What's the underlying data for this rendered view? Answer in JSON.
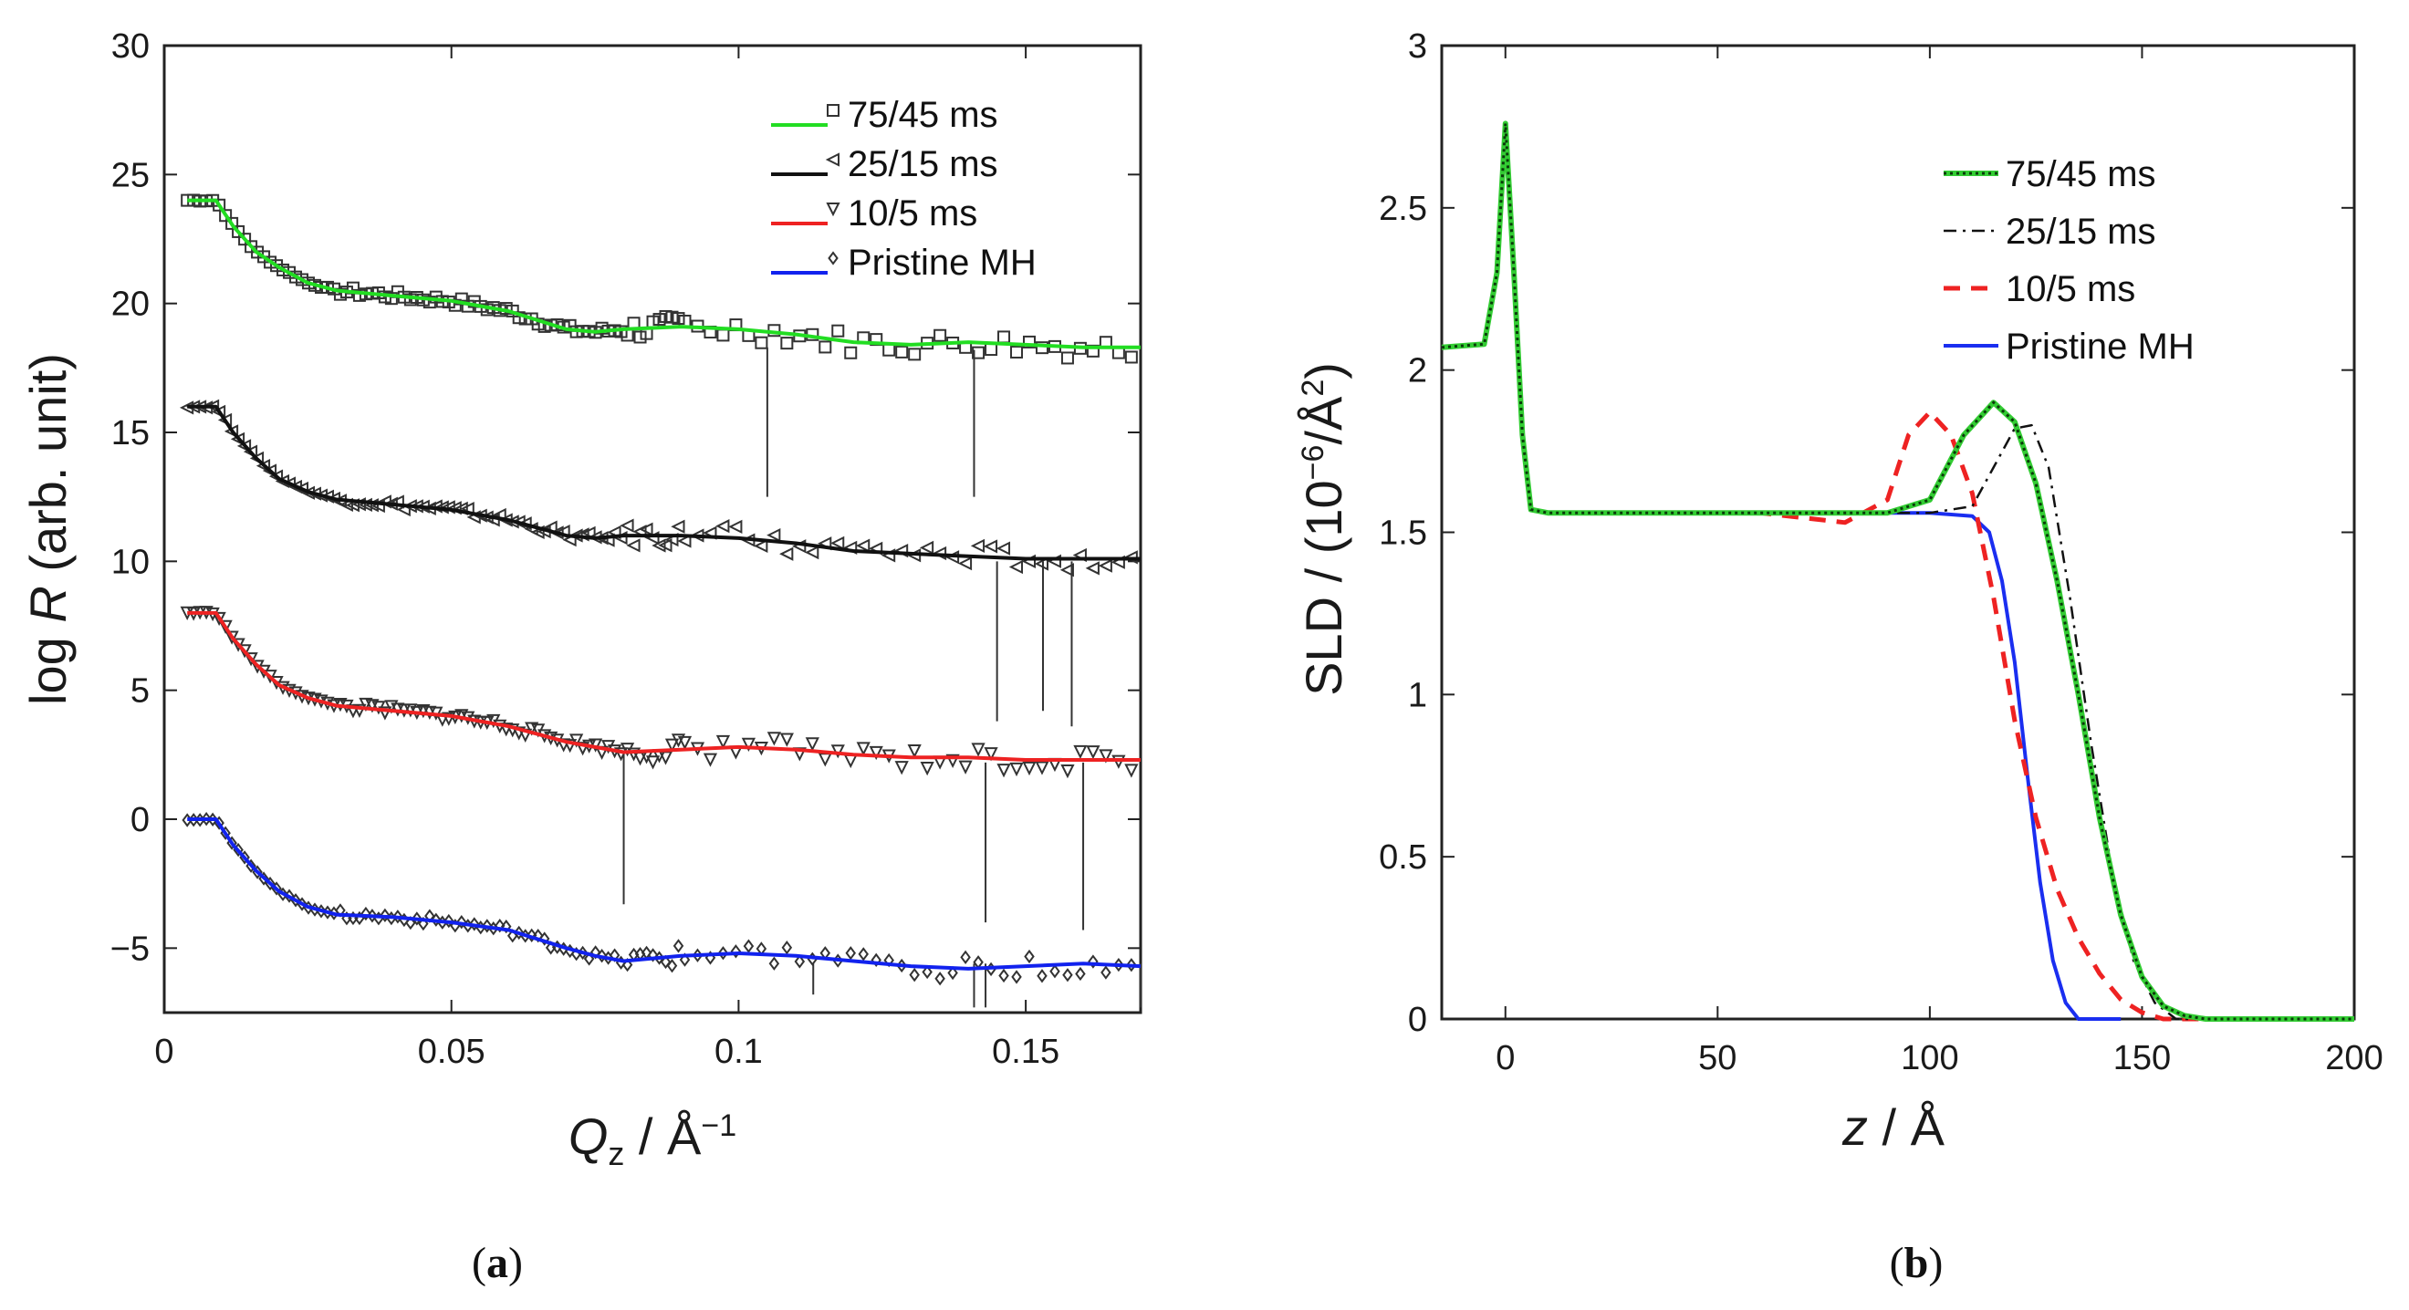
{
  "chart_data": [
    {
      "id": "a",
      "type": "scatter",
      "caption_open": "(",
      "caption_letter": "a",
      "caption_close": ")",
      "xlabel_sym": "Q",
      "xlabel_sub": "z",
      "xlabel_rest": " / Å",
      "xlabel_sup": "−1",
      "ylabel_pre": "log ",
      "ylabel_sym": "R",
      "ylabel_post": " (arb. unit)",
      "xlim": [
        0,
        0.17
      ],
      "ylim": [
        -7.5,
        30
      ],
      "xticks": [
        0,
        0.05,
        0.1,
        0.15
      ],
      "xtick_labels": [
        "0",
        "0.05",
        "0.1",
        "0.15"
      ],
      "yticks": [
        -5,
        0,
        5,
        10,
        15,
        20,
        25,
        30
      ],
      "ytick_labels": [
        "−5",
        "0",
        "5",
        "10",
        "15",
        "20",
        "25",
        "30"
      ],
      "series": [
        {
          "name": "75/45 ms",
          "color": "#22dd22",
          "marker": "square",
          "x": [
            0.004,
            0.009,
            0.012,
            0.016,
            0.02,
            0.025,
            0.03,
            0.04,
            0.05,
            0.06,
            0.07,
            0.075,
            0.08,
            0.09,
            0.1,
            0.11,
            0.12,
            0.13,
            0.14,
            0.15,
            0.16,
            0.17
          ],
          "y": [
            24.0,
            24.0,
            23.0,
            22.0,
            21.4,
            20.8,
            20.5,
            20.3,
            20.1,
            19.7,
            19.0,
            18.9,
            19.0,
            19.1,
            19.0,
            18.8,
            18.5,
            18.4,
            18.5,
            18.4,
            18.3,
            18.3
          ],
          "error_bars": [
            [
              0.105,
              18.3,
              12.5
            ],
            [
              0.141,
              18.2,
              12.5
            ]
          ]
        },
        {
          "name": "25/15 ms",
          "color": "#111111",
          "marker": "triangle-left",
          "x": [
            0.004,
            0.009,
            0.012,
            0.016,
            0.02,
            0.025,
            0.03,
            0.04,
            0.05,
            0.06,
            0.07,
            0.075,
            0.08,
            0.09,
            0.1,
            0.11,
            0.12,
            0.13,
            0.14,
            0.15,
            0.16,
            0.17
          ],
          "y": [
            16.0,
            16.0,
            15.0,
            14.0,
            13.2,
            12.7,
            12.4,
            12.2,
            12.0,
            11.6,
            11.0,
            10.9,
            11.0,
            11.0,
            10.9,
            10.7,
            10.4,
            10.3,
            10.2,
            10.1,
            10.1,
            10.1
          ],
          "error_bars": [
            [
              0.145,
              10.0,
              3.8
            ],
            [
              0.153,
              10.0,
              4.2
            ],
            [
              0.158,
              10.0,
              3.6
            ]
          ]
        },
        {
          "name": "10/5 ms",
          "color": "#ee2222",
          "marker": "triangle-down",
          "x": [
            0.004,
            0.009,
            0.012,
            0.016,
            0.02,
            0.025,
            0.03,
            0.04,
            0.05,
            0.06,
            0.07,
            0.075,
            0.08,
            0.09,
            0.1,
            0.11,
            0.12,
            0.13,
            0.14,
            0.15,
            0.16,
            0.17
          ],
          "y": [
            8.0,
            8.0,
            7.0,
            6.0,
            5.2,
            4.7,
            4.4,
            4.2,
            4.0,
            3.6,
            3.0,
            2.8,
            2.6,
            2.7,
            2.8,
            2.7,
            2.5,
            2.4,
            2.4,
            2.3,
            2.3,
            2.3
          ],
          "error_bars": [
            [
              0.08,
              2.6,
              -3.3
            ],
            [
              0.143,
              2.2,
              -4.0
            ],
            [
              0.16,
              2.2,
              -4.3
            ]
          ]
        },
        {
          "name": "Pristine MH",
          "color": "#1122ee",
          "marker": "diamond",
          "x": [
            0.004,
            0.009,
            0.012,
            0.016,
            0.02,
            0.025,
            0.03,
            0.04,
            0.05,
            0.06,
            0.07,
            0.075,
            0.08,
            0.09,
            0.1,
            0.11,
            0.12,
            0.13,
            0.14,
            0.15,
            0.16,
            0.17
          ],
          "y": [
            0.0,
            0.0,
            -1.0,
            -2.0,
            -2.8,
            -3.4,
            -3.7,
            -3.8,
            -4.0,
            -4.3,
            -5.0,
            -5.3,
            -5.5,
            -5.3,
            -5.2,
            -5.3,
            -5.5,
            -5.7,
            -5.8,
            -5.7,
            -5.6,
            -5.7
          ],
          "error_bars": [
            [
              0.113,
              -5.6,
              -6.8
            ],
            [
              0.141,
              -5.6,
              -7.3
            ],
            [
              0.143,
              -5.6,
              -7.3
            ],
            [
              0.17,
              -5.6,
              -7.3
            ]
          ]
        }
      ]
    },
    {
      "id": "b",
      "type": "line",
      "caption_open": "(",
      "caption_letter": "b",
      "caption_close": ")",
      "xlabel_sym": "z",
      "xlabel_rest": " / Å",
      "ylabel_pre": "SLD / (10",
      "ylabel_sup": "−6",
      "ylabel_mid": "/Å",
      "ylabel_sup2": "2",
      "ylabel_post": ")",
      "xlim": [
        -15,
        200
      ],
      "ylim": [
        0,
        3
      ],
      "xticks": [
        0,
        50,
        100,
        150,
        200
      ],
      "xtick_labels": [
        "0",
        "50",
        "100",
        "150",
        "200"
      ],
      "yticks": [
        0,
        0.5,
        1,
        1.5,
        2,
        2.5,
        3
      ],
      "ytick_labels": [
        "0",
        "0.5",
        "1",
        "1.5",
        "2",
        "2.5",
        "3"
      ],
      "series": [
        {
          "name": "75/45 ms",
          "color": "#117711",
          "dash": "dotted",
          "x": [
            -15,
            -5,
            -2,
            0,
            2,
            4,
            6,
            10,
            50,
            90,
            100,
            108,
            115,
            120,
            125,
            130,
            135,
            140,
            145,
            150,
            155,
            160,
            165,
            200
          ],
          "y": [
            2.07,
            2.08,
            2.3,
            2.76,
            2.3,
            1.8,
            1.57,
            1.56,
            1.56,
            1.56,
            1.6,
            1.8,
            1.9,
            1.84,
            1.65,
            1.35,
            1.0,
            0.62,
            0.32,
            0.13,
            0.04,
            0.01,
            0.0,
            0.0
          ]
        },
        {
          "name": "25/15 ms",
          "color": "#111111",
          "dash": "dashdot",
          "x": [
            -15,
            -5,
            -2,
            0,
            2,
            4,
            6,
            10,
            50,
            100,
            110,
            115,
            120,
            124,
            128,
            133,
            138,
            143,
            148,
            153,
            158,
            200
          ],
          "y": [
            2.07,
            2.08,
            2.3,
            2.76,
            2.3,
            1.8,
            1.57,
            1.56,
            1.56,
            1.56,
            1.58,
            1.7,
            1.82,
            1.83,
            1.7,
            1.3,
            0.85,
            0.45,
            0.18,
            0.05,
            0.0,
            0.0
          ]
        },
        {
          "name": "10/5 ms",
          "color": "#ee2222",
          "dash": "dashed",
          "x": [
            -15,
            -5,
            -2,
            0,
            2,
            4,
            6,
            10,
            60,
            80,
            90,
            95,
            100,
            105,
            110,
            115,
            120,
            125,
            130,
            135,
            140,
            145,
            150,
            155,
            200
          ],
          "y": [
            2.07,
            2.08,
            2.3,
            2.76,
            2.3,
            1.8,
            1.57,
            1.56,
            1.56,
            1.53,
            1.6,
            1.8,
            1.87,
            1.8,
            1.62,
            1.3,
            0.92,
            0.62,
            0.4,
            0.25,
            0.14,
            0.06,
            0.02,
            0.0,
            0.0
          ]
        },
        {
          "name": "Pristine MH",
          "color": "#1a2ef0",
          "dash": "solid",
          "x": [
            -15,
            -5,
            -2,
            0,
            2,
            4,
            6,
            10,
            50,
            100,
            110,
            114,
            117,
            120,
            123,
            126,
            129,
            132,
            135,
            145
          ],
          "y": [
            2.07,
            2.08,
            2.3,
            2.76,
            2.3,
            1.8,
            1.57,
            1.56,
            1.56,
            1.56,
            1.55,
            1.5,
            1.35,
            1.1,
            0.75,
            0.42,
            0.18,
            0.05,
            0.0,
            0.0
          ]
        }
      ]
    }
  ]
}
